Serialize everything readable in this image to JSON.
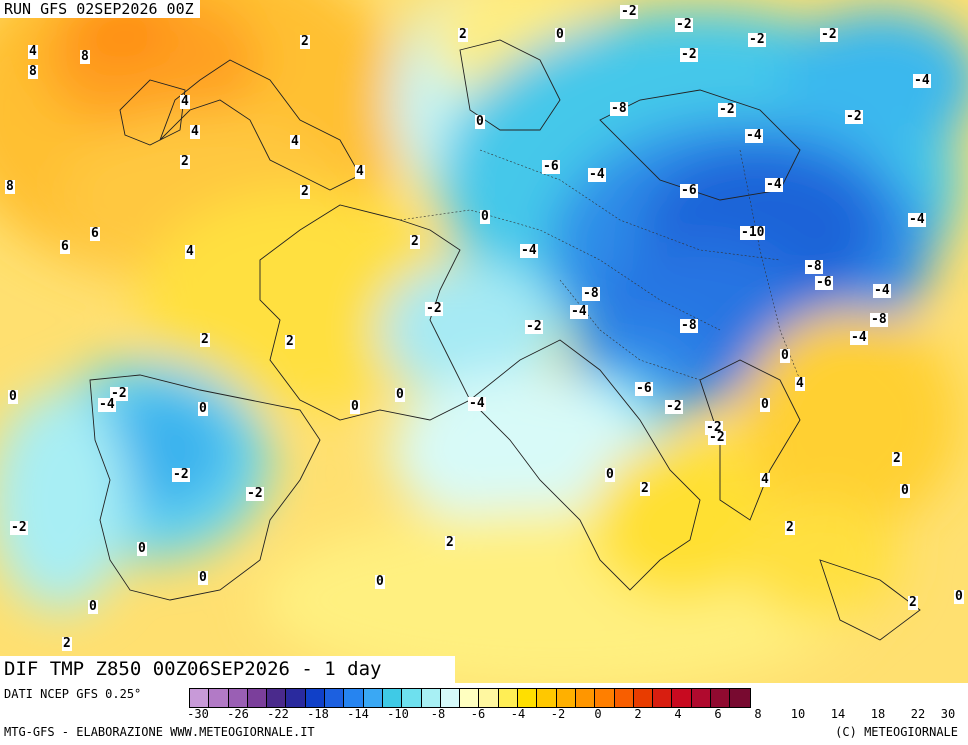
{
  "header": {
    "run_label": "RUN GFS 02SEP2026 00Z"
  },
  "map": {
    "title": "DIF TMP Z850 00Z06SEP2026 - 1 day",
    "region": "Europe",
    "contour_values": [
      "8",
      "4",
      "2",
      "4",
      "8",
      "8",
      "6",
      "6",
      "4",
      "2",
      "4",
      "2",
      "4",
      "4",
      "0",
      "2",
      "0",
      "-2",
      "-2",
      "-2",
      "-2",
      "-2",
      "-4",
      "-2",
      "-2",
      "-4",
      "-4",
      "-6",
      "-4",
      "-6",
      "-8",
      "-4",
      "-10",
      "-4",
      "-8",
      "-6",
      "-4",
      "-8",
      "-4",
      "-8",
      "-2",
      "-2",
      "-8",
      "-6",
      "-2",
      "-4",
      "-2",
      "-2",
      "0",
      "2",
      "0",
      "4",
      "2",
      "2",
      "0",
      "2",
      "0",
      "-2",
      "-4",
      "0",
      "0",
      "0",
      "0",
      "-4",
      "-2",
      "-2",
      "-2",
      "0",
      "0",
      "0",
      "2",
      "0",
      "2",
      "4",
      "2",
      "0",
      "2",
      "2",
      "0"
    ]
  },
  "legend": {
    "source": "DATI NCEP GFS 0.25°",
    "footer_left": "MTG-GFS - ELABORAZIONE WWW.METEOGIORNALE.IT",
    "footer_right": "(C) METEOGIORNALE",
    "tick_labels": [
      "-30",
      "-26",
      "-22",
      "-18",
      "-14",
      "-10",
      "-8",
      "-6",
      "-4",
      "-2",
      "0",
      "2",
      "4",
      "6",
      "8",
      "10",
      "14",
      "18",
      "22",
      "30"
    ],
    "colors": [
      "#c89ad8",
      "#b27ac6",
      "#9a5fb4",
      "#7b3f9b",
      "#4a2a8c",
      "#2a2a9e",
      "#1040c8",
      "#1c60e0",
      "#2684f0",
      "#3aa8f4",
      "#3fcae6",
      "#6ee0ee",
      "#a8f0f4",
      "#d6fafa",
      "#ffffc0",
      "#fff7a0",
      "#ffee55",
      "#ffdf00",
      "#ffc800",
      "#ffb000",
      "#ff9600",
      "#ff7f00",
      "#f85e00",
      "#e83c00",
      "#d81e10",
      "#c80a20",
      "#b00a2e",
      "#900a30",
      "#780a30"
    ]
  }
}
